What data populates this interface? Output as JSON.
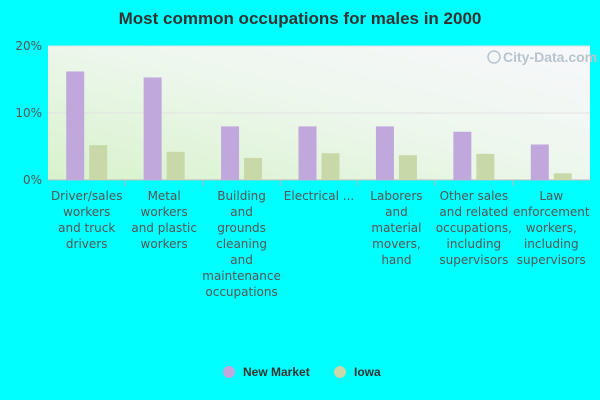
{
  "chart_data": {
    "type": "bar",
    "title": "Most common occupations for males in 2000",
    "categories": [
      "Driver/sales workers and truck drivers",
      "Metal workers and plastic workers",
      "Building and grounds cleaning and maintenance occupations",
      "Electrical ...",
      "Laborers and material movers, hand",
      "Other sales and related occupations, including supervisors",
      "Law enforcement workers, including supervisors"
    ],
    "category_lines": [
      [
        "Driver/sales",
        "workers",
        "and truck",
        "drivers"
      ],
      [
        "Metal",
        "workers",
        "and plastic",
        "workers"
      ],
      [
        "Building",
        "and",
        "grounds",
        "cleaning",
        "and",
        "maintenance",
        "occupations"
      ],
      [
        "Electrical ..."
      ],
      [
        "Laborers",
        "and",
        "material",
        "movers,",
        "hand"
      ],
      [
        "Other sales",
        "and related",
        "occupations,",
        "including",
        "supervisors"
      ],
      [
        "Law",
        "enforcement",
        "workers,",
        "including",
        "supervisors"
      ]
    ],
    "series": [
      {
        "name": "New Market",
        "color": "#c0a8dc",
        "values": [
          16.2,
          15.3,
          8.0,
          8.0,
          8.0,
          7.2,
          5.3
        ]
      },
      {
        "name": "Iowa",
        "color": "#c8d8a8",
        "values": [
          5.2,
          4.2,
          3.3,
          4.0,
          3.7,
          3.9,
          1.0
        ]
      }
    ],
    "ylim": [
      0,
      20
    ],
    "yticks": [
      {
        "value": 0,
        "label": "0%"
      },
      {
        "value": 10,
        "label": "10%"
      },
      {
        "value": 20,
        "label": "20%"
      }
    ],
    "grid": true,
    "legend_position": "bottom"
  },
  "watermark": {
    "text": "City-Data.com"
  }
}
